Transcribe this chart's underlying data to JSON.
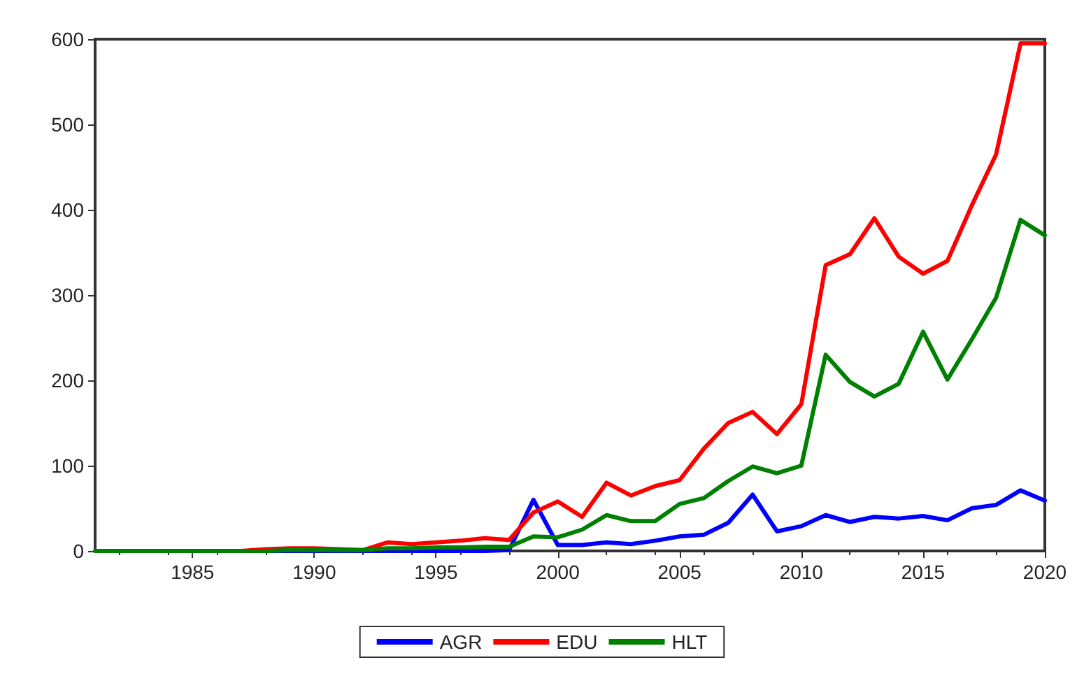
{
  "chart_data": {
    "type": "line",
    "x": [
      1981,
      1982,
      1983,
      1984,
      1985,
      1986,
      1987,
      1988,
      1989,
      1990,
      1991,
      1992,
      1993,
      1994,
      1995,
      1996,
      1997,
      1998,
      1999,
      2000,
      2001,
      2002,
      2003,
      2004,
      2005,
      2006,
      2007,
      2008,
      2009,
      2010,
      2011,
      2012,
      2013,
      2014,
      2015,
      2016,
      2017,
      2018,
      2019,
      2020
    ],
    "series": [
      {
        "name": "AGR",
        "color": "#0000ff",
        "values": [
          null,
          null,
          null,
          null,
          null,
          null,
          0,
          0,
          0,
          0,
          0,
          0,
          0,
          0,
          0,
          0,
          0,
          1,
          60,
          7,
          7,
          10,
          8,
          12,
          17,
          19,
          33,
          66,
          23,
          29,
          42,
          34,
          40,
          38,
          41,
          36,
          50,
          54,
          71,
          59
        ]
      },
      {
        "name": "EDU",
        "color": "#ff0000",
        "values": [
          null,
          null,
          null,
          null,
          null,
          0,
          0,
          2,
          3,
          3,
          2,
          1,
          10,
          8,
          10,
          12,
          15,
          13,
          45,
          58,
          40,
          80,
          65,
          76,
          83,
          120,
          150,
          163,
          137,
          172,
          335,
          348,
          390,
          345,
          325,
          340,
          405,
          465,
          595,
          595
        ]
      },
      {
        "name": "HLT",
        "color": "#008000",
        "values": [
          0,
          0,
          0,
          0,
          0,
          0,
          0,
          0,
          1,
          1,
          1,
          1,
          3,
          3,
          4,
          4,
          5,
          5,
          17,
          16,
          25,
          42,
          35,
          35,
          55,
          62,
          82,
          99,
          91,
          100,
          230,
          198,
          181,
          196,
          257,
          201,
          248,
          297,
          388,
          370
        ]
      }
    ],
    "xlim": [
      1981,
      2020
    ],
    "xticks": [
      1985,
      1990,
      1995,
      2000,
      2005,
      2010,
      2015,
      2020
    ],
    "ylim": [
      0,
      600
    ],
    "yticks": [
      0,
      100,
      200,
      300,
      400,
      500,
      600
    ],
    "grid": false,
    "legend": "bottom",
    "marker": "none",
    "line_style": "solid"
  }
}
